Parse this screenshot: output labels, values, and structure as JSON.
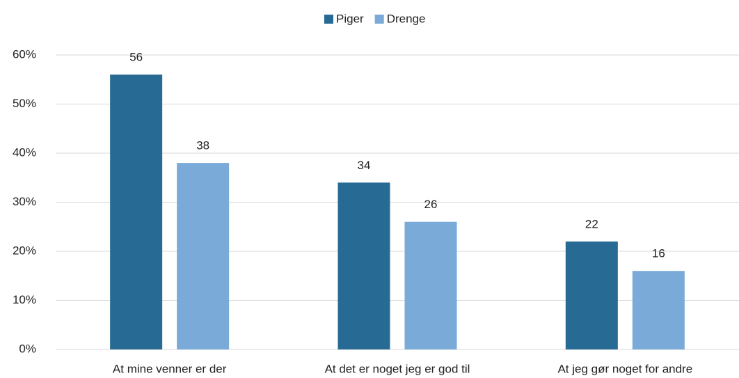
{
  "chart_data": {
    "type": "bar",
    "categories": [
      "At mine venner er der",
      "At det er noget jeg er god til",
      "At jeg gør noget for andre"
    ],
    "series": [
      {
        "name": "Piger",
        "color": "#276a94",
        "values": [
          56,
          34,
          22
        ]
      },
      {
        "name": "Drenge",
        "color": "#79aad8",
        "values": [
          38,
          26,
          16
        ]
      }
    ],
    "ylim": [
      0,
      60
    ],
    "yticks": [
      {
        "value": 0,
        "label": "0%"
      },
      {
        "value": 10,
        "label": "10%"
      },
      {
        "value": 20,
        "label": "20%"
      },
      {
        "value": 30,
        "label": "30%"
      },
      {
        "value": 40,
        "label": "40%"
      },
      {
        "value": 50,
        "label": "50%"
      },
      {
        "value": 60,
        "label": "60%"
      }
    ],
    "grid": true,
    "legend": "top"
  }
}
